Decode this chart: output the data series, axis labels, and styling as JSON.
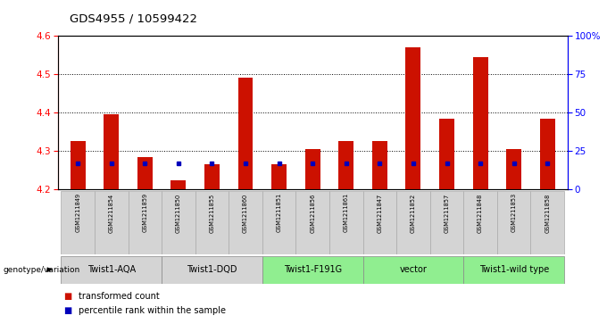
{
  "title": "GDS4955 / 10599422",
  "samples": [
    "GSM1211849",
    "GSM1211854",
    "GSM1211859",
    "GSM1211850",
    "GSM1211855",
    "GSM1211860",
    "GSM1211851",
    "GSM1211856",
    "GSM1211861",
    "GSM1211847",
    "GSM1211852",
    "GSM1211857",
    "GSM1211848",
    "GSM1211853",
    "GSM1211858"
  ],
  "red_values": [
    4.325,
    4.395,
    4.285,
    4.225,
    4.265,
    4.49,
    4.265,
    4.305,
    4.325,
    4.325,
    4.57,
    4.385,
    4.545,
    4.305,
    4.385
  ],
  "blue_percentile": [
    17,
    17,
    17,
    17,
    17,
    17,
    17,
    17,
    17,
    17,
    17,
    17,
    17,
    17,
    17
  ],
  "groups": [
    {
      "label": "Twist1-AQA",
      "indices": [
        0,
        1,
        2
      ],
      "color": "#d4d4d4"
    },
    {
      "label": "Twist1-DQD",
      "indices": [
        3,
        4,
        5
      ],
      "color": "#d4d4d4"
    },
    {
      "label": "Twist1-F191G",
      "indices": [
        6,
        7,
        8
      ],
      "color": "#90ee90"
    },
    {
      "label": "vector",
      "indices": [
        9,
        10,
        11
      ],
      "color": "#90ee90"
    },
    {
      "label": "Twist1-wild type",
      "indices": [
        12,
        13,
        14
      ],
      "color": "#90ee90"
    }
  ],
  "y_min": 4.2,
  "y_max": 4.6,
  "y_ticks": [
    4.2,
    4.3,
    4.4,
    4.5,
    4.6
  ],
  "y2_ticks": [
    0,
    25,
    50,
    75,
    100
  ],
  "bar_color": "#cc1100",
  "blue_color": "#0000bb",
  "legend_items": [
    "transformed count",
    "percentile rank within the sample"
  ],
  "genotype_label": "genotype/variation",
  "sample_bg_color": "#d4d4d4",
  "sample_border_color": "#aaaaaa"
}
